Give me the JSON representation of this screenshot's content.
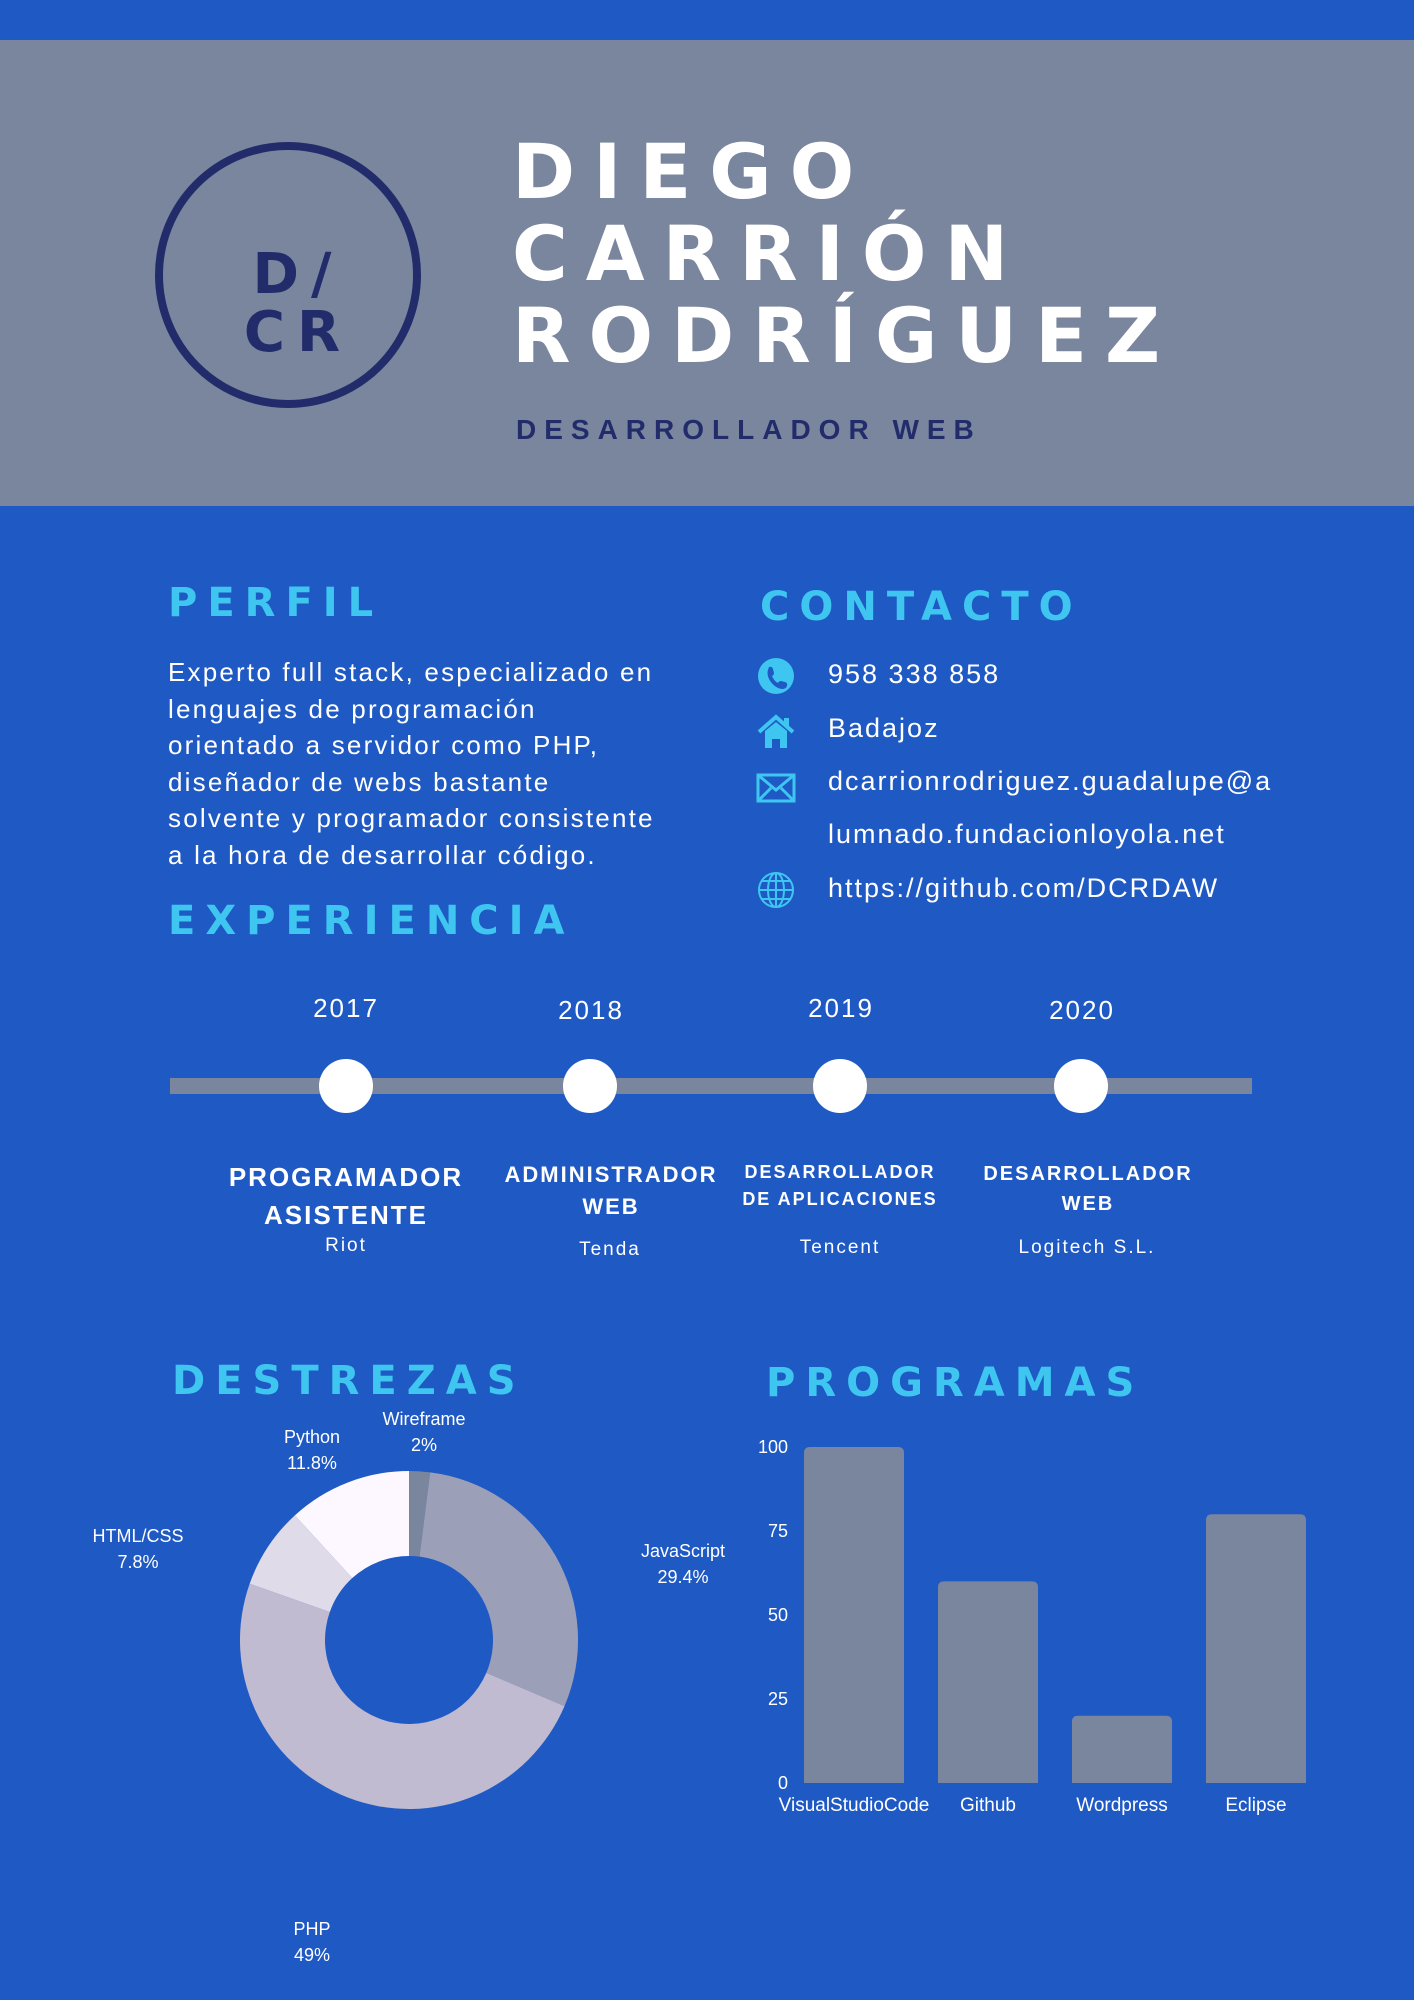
{
  "header": {
    "monogram": [
      "D/",
      "CR"
    ],
    "name_lines": [
      "DIEGO",
      "CARRIÓN",
      "RODRÍGUEZ"
    ],
    "role": "DESARROLLADOR WEB"
  },
  "profile": {
    "title": "PERFIL",
    "lines": [
      "Experto full stack, especializado en",
      "lenguajes de programación",
      "orientado a servidor como PHP,",
      "diseñador de webs bastante",
      "solvente y programador consistente",
      "a la hora de desarrollar código."
    ]
  },
  "contact": {
    "title": "CONTACTO",
    "phone": "958 338 858",
    "city": "Badajoz",
    "email_line1": "dcarrionrodriguez.guadalupe@a",
    "email_line2": "lumnado.fundacionloyola.net",
    "web": "https://github.com/DCRDAW",
    "icons": [
      "phone-icon",
      "home-icon",
      "mail-icon",
      "globe-icon"
    ]
  },
  "experience": {
    "title": "EXPERIENCIA",
    "items": [
      {
        "year": "2017",
        "title_lines": [
          "PROGRAMADOR",
          "ASISTENTE"
        ],
        "company": "Riot"
      },
      {
        "year": "2018",
        "title_lines": [
          "ADMINISTRADOR",
          "WEB"
        ],
        "company": "Tenda"
      },
      {
        "year": "2019",
        "title_lines": [
          "DESARROLLADOR",
          "DE APLICACIONES"
        ],
        "company": "Tencent"
      },
      {
        "year": "2020",
        "title_lines": [
          "DESARROLLADOR",
          "WEB"
        ],
        "company": "Logitech S.L."
      }
    ]
  },
  "skills_title": "DESTREZAS",
  "programs_title": "PROGRAMAS",
  "colors": {
    "background": "#1f59c4",
    "header": "#7a869e",
    "accent": "#3ec6f0",
    "dark": "#232c6b"
  },
  "chart_data": [
    {
      "type": "pie",
      "title": "DESTREZAS",
      "categories": [
        "Wireframe",
        "JavaScript",
        "PHP",
        "HTML/CSS",
        "Python"
      ],
      "values": [
        2,
        29.4,
        49,
        7.8,
        11.8
      ],
      "value_labels": [
        "2%",
        "29.4%",
        "49%",
        "7.8%",
        "11.8%"
      ],
      "colors": [
        "#7a869e",
        "#9ba0b8",
        "#c0bbd1",
        "#dfdbe8",
        "#fdf7ff"
      ]
    },
    {
      "type": "bar",
      "title": "PROGRAMAS",
      "categories": [
        "VisualStudioCode",
        "Github",
        "Wordpress",
        "Eclipse"
      ],
      "values": [
        100,
        60,
        20,
        80
      ],
      "yticks": [
        "0",
        "25",
        "50",
        "75",
        "100"
      ],
      "ylim": [
        0,
        100
      ],
      "bar_color": "#7a869e"
    }
  ]
}
